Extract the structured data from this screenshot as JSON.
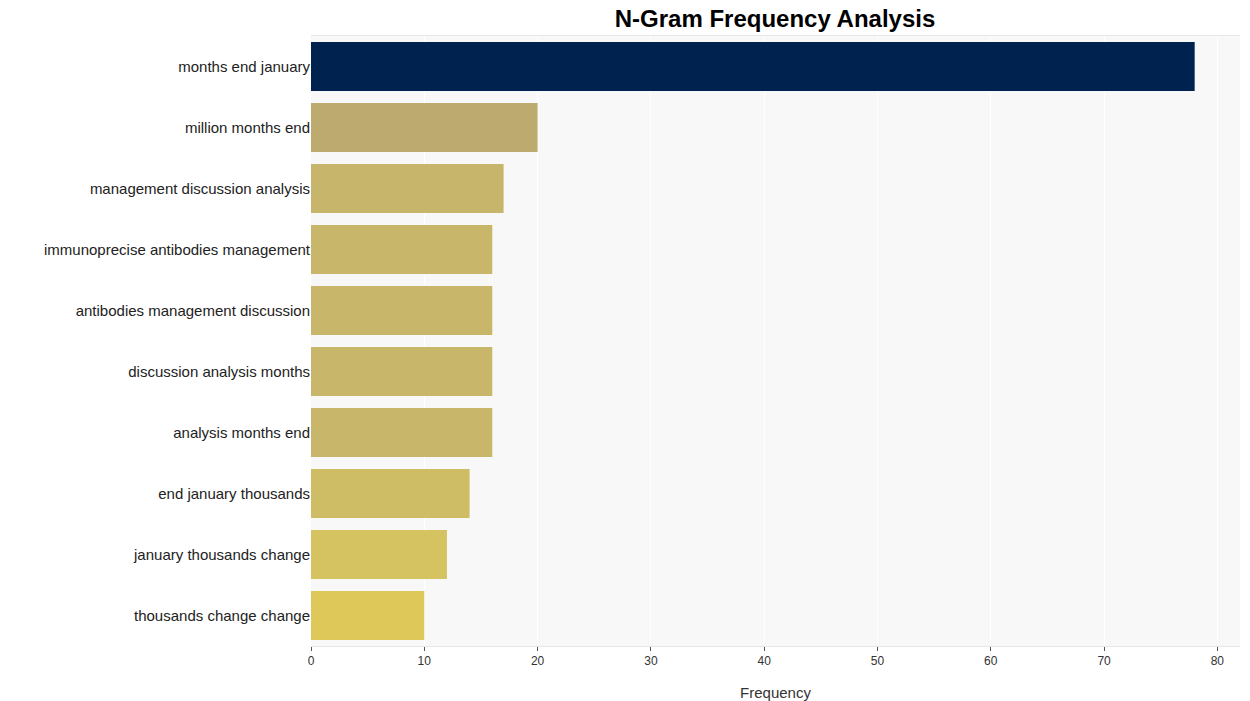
{
  "chart_data": {
    "type": "bar",
    "orientation": "horizontal",
    "title": "N-Gram Frequency Analysis",
    "x_label": "Frequency",
    "categories": [
      "months end january",
      "million months end",
      "management discussion analysis",
      "immunoprecise antibodies management",
      "antibodies management discussion",
      "discussion analysis months",
      "analysis months end",
      "end january thousands",
      "january thousands change",
      "thousands change change"
    ],
    "values": [
      78,
      20,
      17,
      16,
      16,
      16,
      16,
      14,
      12,
      10
    ],
    "colors": [
      "#00224e",
      "#bcaa6e",
      "#c6b56a",
      "#c8b66a",
      "#c8b66a",
      "#c8b66a",
      "#c8b66a",
      "#cfbd65",
      "#d5c261",
      "#dfc85a"
    ],
    "xlim": [
      0,
      82
    ],
    "xticks": [
      0,
      10,
      20,
      30,
      40,
      50,
      60,
      70,
      80
    ],
    "grid": true
  }
}
